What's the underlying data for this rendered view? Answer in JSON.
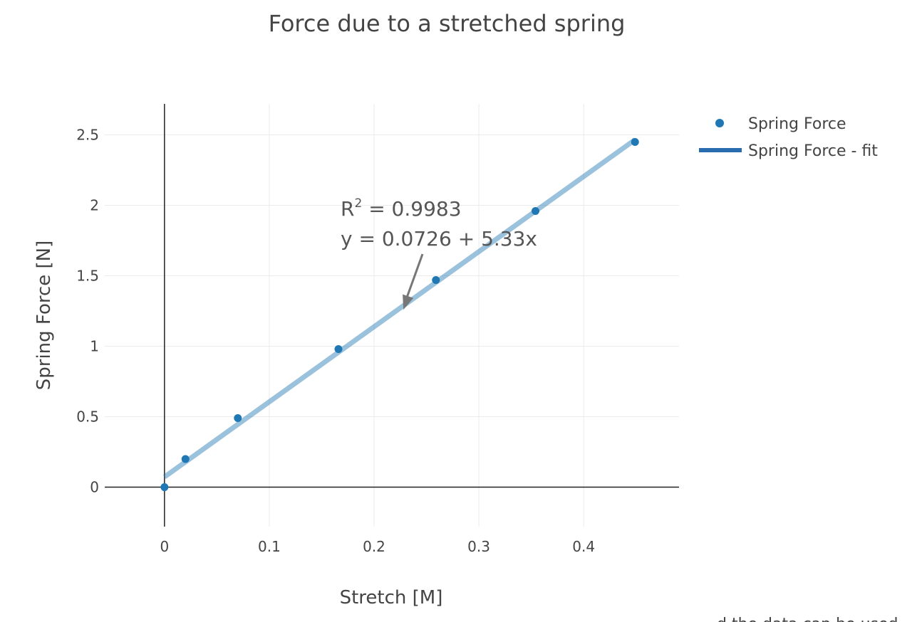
{
  "chart_data": {
    "type": "scatter",
    "title": "Force due to a stretched spring",
    "xlabel": "Stretch [M]",
    "ylabel": "Spring Force [N]",
    "xlim": [
      -0.057,
      0.491
    ],
    "ylim": [
      -0.28,
      2.72
    ],
    "x_ticks": [
      0,
      0.1,
      0.2,
      0.3,
      0.4
    ],
    "y_ticks": [
      0,
      0.5,
      1,
      1.5,
      2,
      2.5
    ],
    "x_tick_labels": [
      "0",
      "0.1",
      "0.2",
      "0.3",
      "0.4"
    ],
    "y_tick_labels": [
      "0",
      "0.5",
      "1",
      "1.5",
      "2",
      "2.5"
    ],
    "grid": true,
    "legend_position": "top-right",
    "series": [
      {
        "name": "Spring Force",
        "mode": "markers",
        "color": "#1f77b4",
        "x": [
          0,
          0.02,
          0.07,
          0.166,
          0.259,
          0.354,
          0.449
        ],
        "y": [
          0,
          0.2,
          0.49,
          0.98,
          1.47,
          1.96,
          2.45
        ]
      },
      {
        "name": "Spring Force - fit",
        "mode": "line",
        "color": "#1f77b4",
        "intercept": 0.0726,
        "slope": 5.33,
        "x_range": [
          0,
          0.449
        ]
      }
    ],
    "annotation": {
      "r2_base": "R",
      "r2_sup": "2",
      "r2_rest": " = 0.9983",
      "equation": "y = 0.0726 + 5.33x",
      "arrow_to": [
        0.228,
        1.26
      ]
    }
  },
  "footer_fragment": "...d the data can be used..."
}
